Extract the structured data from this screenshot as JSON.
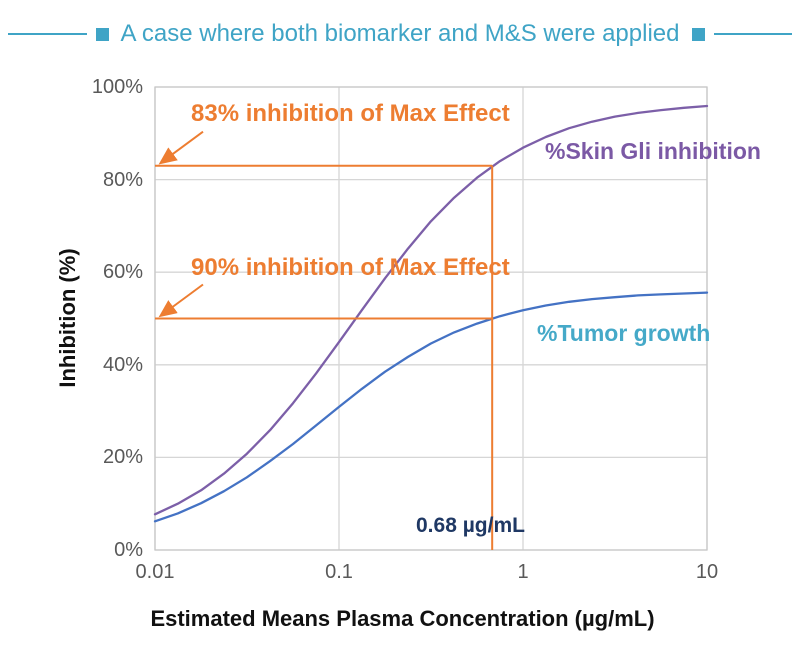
{
  "header": {
    "title": "A case where both biomarker and M&S were applied",
    "accent_color": "#3FA4C6"
  },
  "chart_data": {
    "type": "line",
    "x_axis": {
      "label": "Estimated Means Plasma Concentration (µg/mL)",
      "scale": "log",
      "range": [
        0.01,
        10
      ],
      "ticks": [
        0.01,
        0.1,
        1,
        10
      ],
      "tick_labels": [
        "0.01",
        "0.1",
        "1",
        "10"
      ]
    },
    "y_axis": {
      "label": "Inhibition (%)",
      "range": [
        0,
        100
      ],
      "ticks": [
        0,
        20,
        40,
        60,
        80,
        100
      ],
      "tick_labels": [
        "0%",
        "20%",
        "40%",
        "60%",
        "80%",
        "100%"
      ]
    },
    "grid": true,
    "gridline_color": "#D6D6D6",
    "legend_position": "inline-labels",
    "series": [
      {
        "name": "%Skin Gli inhibition",
        "color": "#7C5FA8",
        "label_color": "#7B59A5",
        "x": [
          0.01,
          0.0133,
          0.0178,
          0.0237,
          0.0316,
          0.0422,
          0.0562,
          0.075,
          0.1,
          0.133,
          0.178,
          0.237,
          0.316,
          0.422,
          0.562,
          0.75,
          1,
          1.33,
          1.78,
          2.37,
          3.16,
          4.22,
          5.62,
          7.5,
          10
        ],
        "y": [
          7.7,
          10.0,
          12.9,
          16.5,
          20.8,
          25.9,
          31.7,
          38.1,
          44.9,
          51.8,
          58.7,
          65.1,
          71.0,
          76.1,
          80.4,
          84.0,
          86.9,
          89.2,
          91.1,
          92.5,
          93.6,
          94.4,
          95.0,
          95.5,
          95.9
        ]
      },
      {
        "name": "%Tumor growth",
        "color": "#4472C4",
        "label_color": "#45A9C8",
        "x": [
          0.01,
          0.0133,
          0.0178,
          0.0237,
          0.0316,
          0.0422,
          0.0562,
          0.075,
          0.1,
          0.133,
          0.178,
          0.237,
          0.316,
          0.422,
          0.562,
          0.75,
          1,
          1.33,
          1.78,
          2.37,
          3.16,
          4.22,
          5.62,
          7.5,
          10
        ],
        "y": [
          6.2,
          7.9,
          10.1,
          12.7,
          15.7,
          19.2,
          22.9,
          26.9,
          30.9,
          34.8,
          38.5,
          41.7,
          44.6,
          47.0,
          48.9,
          50.5,
          51.8,
          52.8,
          53.6,
          54.2,
          54.6,
          55.0,
          55.2,
          55.4,
          55.6
        ]
      }
    ],
    "annotations": {
      "color": "#ED7D31",
      "texts": [
        "83% inhibition of Max Effect",
        "90% inhibition of Max Effect"
      ],
      "reference_lines": [
        {
          "y_percent": 83,
          "x_from": 0.01,
          "x_to": 0.68
        },
        {
          "y_percent": 50,
          "x_from": 0.01,
          "x_to": 0.68
        }
      ],
      "reference_vertical": {
        "x": 0.68,
        "y_from_percent": 83,
        "y_to_percent": 0
      },
      "reference_x_label": "0.68 µg/mL",
      "reference_x_label_color": "#1F3864"
    }
  }
}
